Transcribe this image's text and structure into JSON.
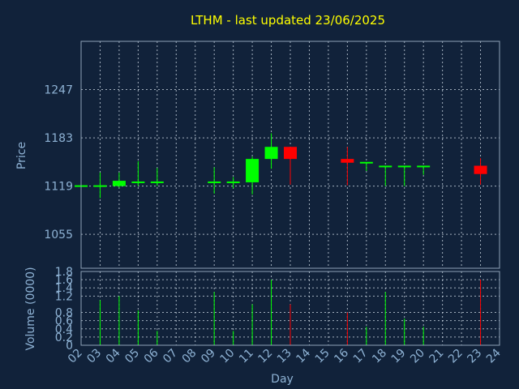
{
  "title": "LTHM - last updated 23/06/2025",
  "colors": {
    "background": "#11223a",
    "up": "#00ff00",
    "down": "#ff0000",
    "title": "#ffff00",
    "axis_text": "#8eb2d4"
  },
  "chart_data": [
    {
      "type": "candlestick",
      "title": "LTHM - last updated 23/06/2025",
      "ylabel": "Price",
      "ylim": [
        1010,
        1311
      ],
      "yticks": [
        1055,
        1119,
        1183,
        1247
      ],
      "xlim": [
        2,
        24
      ],
      "grid": true,
      "x": [
        2,
        3,
        4,
        5,
        6,
        9,
        10,
        11,
        12,
        13,
        16,
        17,
        18,
        19,
        20,
        23
      ],
      "open": [
        1119,
        1119,
        1119,
        1124,
        1124,
        1124,
        1124,
        1124,
        1155,
        1171,
        1155,
        1150,
        1145,
        1145,
        1145,
        1146
      ],
      "high": [
        1119,
        1137,
        1137,
        1152,
        1143,
        1144,
        1131,
        1158,
        1189,
        1171,
        1171,
        1150,
        1145,
        1145,
        1145,
        1156
      ],
      "low": [
        1119,
        1103,
        1117,
        1119,
        1119,
        1109,
        1116,
        1108,
        1142,
        1121,
        1120,
        1139,
        1119,
        1119,
        1134,
        1121
      ],
      "close": [
        1119,
        1119,
        1126,
        1124,
        1124,
        1124,
        1124,
        1155,
        1171,
        1155,
        1150,
        1150,
        1145,
        1145,
        1145,
        1135
      ],
      "direction": [
        "up",
        "up",
        "up",
        "up",
        "up",
        "up",
        "up",
        "up",
        "up",
        "down",
        "down",
        "up",
        "up",
        "up",
        "up",
        "down"
      ]
    },
    {
      "type": "bar",
      "ylabel": "Volume (0000)",
      "xlabel": "Day",
      "ylim": [
        0,
        1.8
      ],
      "yticks": [
        "0",
        "0.2",
        "0.4",
        "0.6",
        "0.8",
        "1.2",
        "1.4",
        "1.6",
        "1.8"
      ],
      "ytick_values": [
        0,
        0.2,
        0.4,
        0.6,
        0.8,
        1.2,
        1.4,
        1.6,
        1.8
      ],
      "xticks": [
        "02",
        "03",
        "04",
        "05",
        "06",
        "07",
        "08",
        "09",
        "10",
        "11",
        "12",
        "13",
        "14",
        "15",
        "16",
        "17",
        "18",
        "19",
        "20",
        "21",
        "22",
        "23",
        "24"
      ],
      "grid": true,
      "x": [
        3,
        4,
        5,
        6,
        9,
        10,
        11,
        12,
        13,
        16,
        17,
        18,
        19,
        20,
        23
      ],
      "values": [
        1.1,
        1.2,
        0.85,
        0.35,
        1.3,
        0.35,
        1.0,
        1.6,
        1.0,
        0.8,
        0.45,
        1.3,
        0.65,
        0.45,
        1.6
      ],
      "direction": [
        "up",
        "up",
        "up",
        "up",
        "up",
        "up",
        "up",
        "up",
        "down",
        "down",
        "up",
        "up",
        "up",
        "up",
        "down"
      ]
    }
  ]
}
